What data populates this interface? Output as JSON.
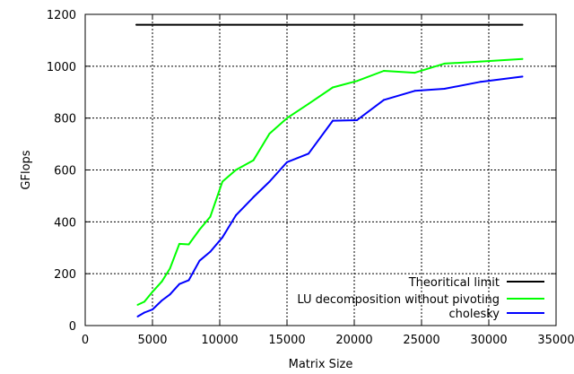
{
  "chart_data": {
    "type": "line",
    "title": "",
    "xlabel": "Matrix Size",
    "ylabel": "GFlops",
    "xlim": [
      0,
      35000
    ],
    "ylim": [
      0,
      1200
    ],
    "xticks": [
      0,
      5000,
      10000,
      15000,
      20000,
      25000,
      30000,
      35000
    ],
    "yticks": [
      0,
      200,
      400,
      600,
      800,
      1000,
      1200
    ],
    "grid": true,
    "legend_position": "bottom-right",
    "series": [
      {
        "name": "Theoritical limit",
        "color": "#000000",
        "x": [
          3800,
          32500
        ],
        "y": [
          1160,
          1160
        ]
      },
      {
        "name": "LU decomposition without pivoting",
        "color": "#00ff00",
        "x": [
          3900,
          4400,
          5000,
          5700,
          6300,
          7000,
          7700,
          8500,
          9300,
          10200,
          11200,
          12500,
          13700,
          15000,
          16600,
          18400,
          20200,
          22200,
          24500,
          26700,
          29400,
          32500
        ],
        "y": [
          80,
          92,
          130,
          170,
          220,
          315,
          313,
          370,
          420,
          555,
          600,
          637,
          740,
          800,
          855,
          918,
          943,
          982,
          975,
          1010,
          1018,
          1028
        ]
      },
      {
        "name": "cholesky",
        "color": "#0000ff",
        "x": [
          3900,
          4400,
          5000,
          5700,
          6300,
          7000,
          7700,
          8500,
          9300,
          10200,
          11200,
          12500,
          13700,
          15000,
          16600,
          18400,
          20200,
          22200,
          24500,
          26700,
          29400,
          32500
        ],
        "y": [
          35,
          50,
          62,
          97,
          120,
          160,
          175,
          250,
          285,
          340,
          425,
          495,
          555,
          630,
          663,
          790,
          792,
          870,
          905,
          913,
          940,
          960
        ]
      }
    ]
  }
}
